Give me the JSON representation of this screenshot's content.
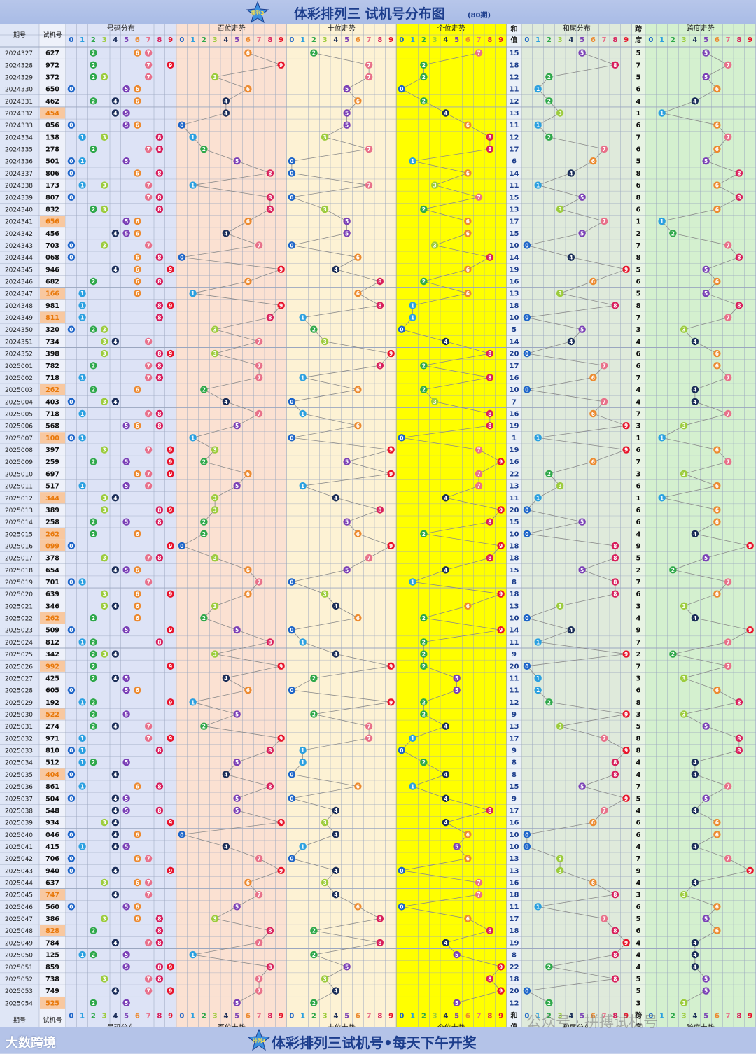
{
  "header": {
    "title": "体彩排列三 试机号分布图",
    "subtitle": "(80期)",
    "logo_text": "排列3"
  },
  "footer": {
    "title": "体彩排列三试机号•每天下午开奖",
    "brand": "大数跨境",
    "watermark": "公众号 · 拼搏试机号"
  },
  "columns": {
    "period": "期号",
    "trial": "试机号",
    "distribution": "号码分布",
    "hundreds": "百位走势",
    "tens": "十位走势",
    "units": "个位走势",
    "sum_top": "和",
    "sum_bottom": "值",
    "sum_tail": "和尾分布",
    "span_top": "跨",
    "span_bottom": "度",
    "span_trend": "跨度走势",
    "digits": [
      "0",
      "1",
      "2",
      "3",
      "4",
      "5",
      "6",
      "7",
      "8",
      "9"
    ]
  },
  "colors": {
    "digit_colors": [
      "#1c64c8",
      "#2ba0e0",
      "#2ea84a",
      "#9ccc3c",
      "#1a2d58",
      "#7a3fb6",
      "#ec8a30",
      "#e8708a",
      "#d81e5b",
      "#e8132b"
    ],
    "band_distribution": "#dde3f6",
    "band_hundreds": "#fbe1d2",
    "band_tens": "#fdf2d4",
    "band_units": "#ffff00",
    "band_sum_tail": "#dfeadb",
    "band_span": "#d4f0cf",
    "period_band": "#dfe6f6",
    "highlight_cell": "#f8c8a0",
    "highlight_text": "#e8780a"
  },
  "chart_data": {
    "type": "table",
    "rows": [
      {
        "period": "2024327",
        "num": "627"
      },
      {
        "period": "2024328",
        "num": "972"
      },
      {
        "period": "2024329",
        "num": "372"
      },
      {
        "period": "2024330",
        "num": "650"
      },
      {
        "period": "2024331",
        "num": "462"
      },
      {
        "period": "2024332",
        "num": "454"
      },
      {
        "period": "2024333",
        "num": "056"
      },
      {
        "period": "2024334",
        "num": "138"
      },
      {
        "period": "2024335",
        "num": "278"
      },
      {
        "period": "2024336",
        "num": "501"
      },
      {
        "period": "2024337",
        "num": "806"
      },
      {
        "period": "2024338",
        "num": "173"
      },
      {
        "period": "2024339",
        "num": "807"
      },
      {
        "period": "2024340",
        "num": "832"
      },
      {
        "period": "2024341",
        "num": "656"
      },
      {
        "period": "2024342",
        "num": "456"
      },
      {
        "period": "2024343",
        "num": "703"
      },
      {
        "period": "2024344",
        "num": "068"
      },
      {
        "period": "2024345",
        "num": "946"
      },
      {
        "period": "2024346",
        "num": "682"
      },
      {
        "period": "2024347",
        "num": "166"
      },
      {
        "period": "2024348",
        "num": "981"
      },
      {
        "period": "2024349",
        "num": "811"
      },
      {
        "period": "2024350",
        "num": "320"
      },
      {
        "period": "2024351",
        "num": "734"
      },
      {
        "period": "2024352",
        "num": "398"
      },
      {
        "period": "2025001",
        "num": "782"
      },
      {
        "period": "2025002",
        "num": "718"
      },
      {
        "period": "2025003",
        "num": "262"
      },
      {
        "period": "2025004",
        "num": "403"
      },
      {
        "period": "2025005",
        "num": "718"
      },
      {
        "period": "2025006",
        "num": "568"
      },
      {
        "period": "2025007",
        "num": "100"
      },
      {
        "period": "2025008",
        "num": "397"
      },
      {
        "period": "2025009",
        "num": "259"
      },
      {
        "period": "2025010",
        "num": "697"
      },
      {
        "period": "2025011",
        "num": "517"
      },
      {
        "period": "2025012",
        "num": "344"
      },
      {
        "period": "2025013",
        "num": "389"
      },
      {
        "period": "2025014",
        "num": "258"
      },
      {
        "period": "2025015",
        "num": "262"
      },
      {
        "period": "2025016",
        "num": "099"
      },
      {
        "period": "2025017",
        "num": "378"
      },
      {
        "period": "2025018",
        "num": "654"
      },
      {
        "period": "2025019",
        "num": "701"
      },
      {
        "period": "2025020",
        "num": "639"
      },
      {
        "period": "2025021",
        "num": "346"
      },
      {
        "period": "2025022",
        "num": "262"
      },
      {
        "period": "2025023",
        "num": "509"
      },
      {
        "period": "2025024",
        "num": "812"
      },
      {
        "period": "2025025",
        "num": "342"
      },
      {
        "period": "2025026",
        "num": "992"
      },
      {
        "period": "2025027",
        "num": "425"
      },
      {
        "period": "2025028",
        "num": "605"
      },
      {
        "period": "2025029",
        "num": "192"
      },
      {
        "period": "2025030",
        "num": "522"
      },
      {
        "period": "2025031",
        "num": "274"
      },
      {
        "period": "2025032",
        "num": "971"
      },
      {
        "period": "2025033",
        "num": "810"
      },
      {
        "period": "2025034",
        "num": "512"
      },
      {
        "period": "2025035",
        "num": "404"
      },
      {
        "period": "2025036",
        "num": "861"
      },
      {
        "period": "2025037",
        "num": "504"
      },
      {
        "period": "2025038",
        "num": "548"
      },
      {
        "period": "2025039",
        "num": "934"
      },
      {
        "period": "2025040",
        "num": "046"
      },
      {
        "period": "2025041",
        "num": "415"
      },
      {
        "period": "2025042",
        "num": "706"
      },
      {
        "period": "2025043",
        "num": "940"
      },
      {
        "period": "2025044",
        "num": "637"
      },
      {
        "period": "2025045",
        "num": "747"
      },
      {
        "period": "2025046",
        "num": "560"
      },
      {
        "period": "2025047",
        "num": "386"
      },
      {
        "period": "2025048",
        "num": "828"
      },
      {
        "period": "2025049",
        "num": "784"
      },
      {
        "period": "2025050",
        "num": "125"
      },
      {
        "period": "2025051",
        "num": "859"
      },
      {
        "period": "2025052",
        "num": "738"
      },
      {
        "period": "2025053",
        "num": "749"
      },
      {
        "period": "2025054",
        "num": "525"
      }
    ]
  }
}
